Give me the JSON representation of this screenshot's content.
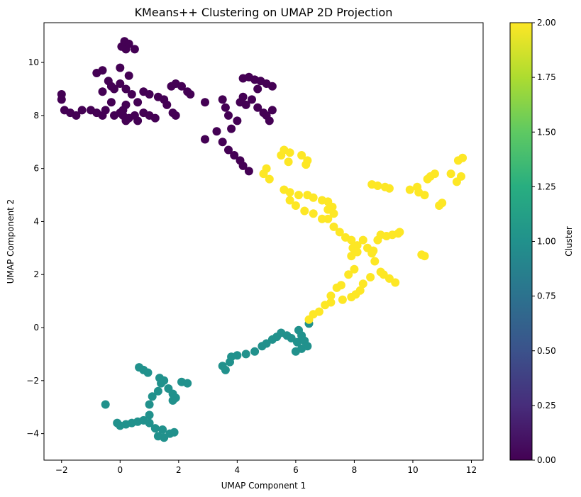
{
  "chart_data": {
    "type": "scatter",
    "title": "KMeans++ Clustering on UMAP 2D Projection",
    "xlabel": "UMAP Component 1",
    "ylabel": "UMAP Component 2",
    "xlim": [
      -2.6,
      12.4
    ],
    "ylim": [
      -5.0,
      11.5
    ],
    "xticks": [
      -2,
      0,
      2,
      4,
      6,
      8,
      10,
      12
    ],
    "yticks": [
      -4,
      -2,
      0,
      2,
      4,
      6,
      8,
      10
    ],
    "grid": false,
    "colormap": "viridis",
    "colorbar": {
      "label": "Cluster",
      "range": [
        0.0,
        2.0
      ],
      "ticks": [
        "0.00",
        "0.25",
        "0.50",
        "0.75",
        "1.00",
        "1.25",
        "1.50",
        "1.75",
        "2.00"
      ]
    },
    "series": [
      {
        "cluster": 0,
        "color": "#440154",
        "points": [
          [
            -2.0,
            8.8
          ],
          [
            -2.0,
            8.6
          ],
          [
            -1.9,
            8.2
          ],
          [
            -1.7,
            8.1
          ],
          [
            -1.5,
            8.0
          ],
          [
            -1.3,
            8.2
          ],
          [
            -1.0,
            8.2
          ],
          [
            -0.8,
            8.1
          ],
          [
            -0.6,
            8.0
          ],
          [
            -0.5,
            8.2
          ],
          [
            -0.3,
            8.5
          ],
          [
            -0.2,
            8.0
          ],
          [
            0.0,
            8.1
          ],
          [
            0.1,
            8.0
          ],
          [
            0.2,
            7.8
          ],
          [
            0.3,
            7.9
          ],
          [
            0.5,
            8.0
          ],
          [
            0.6,
            7.8
          ],
          [
            0.8,
            8.1
          ],
          [
            1.0,
            8.0
          ],
          [
            1.2,
            7.9
          ],
          [
            -0.6,
            8.9
          ],
          [
            -0.4,
            9.3
          ],
          [
            -0.2,
            9.0
          ],
          [
            0.0,
            9.2
          ],
          [
            0.2,
            9.0
          ],
          [
            0.4,
            8.8
          ],
          [
            0.6,
            8.5
          ],
          [
            0.2,
            8.4
          ],
          [
            0.1,
            8.2
          ],
          [
            0.2,
            10.5
          ],
          [
            0.05,
            10.6
          ],
          [
            0.15,
            10.8
          ],
          [
            0.3,
            10.7
          ],
          [
            0.5,
            10.5
          ],
          [
            -0.6,
            9.7
          ],
          [
            -0.8,
            9.6
          ],
          [
            0.3,
            9.5
          ],
          [
            0.0,
            9.8
          ],
          [
            -0.3,
            9.1
          ],
          [
            0.8,
            8.9
          ],
          [
            1.0,
            8.8
          ],
          [
            1.3,
            8.7
          ],
          [
            1.5,
            8.6
          ],
          [
            1.6,
            8.4
          ],
          [
            1.8,
            8.1
          ],
          [
            1.9,
            8.0
          ],
          [
            1.75,
            9.1
          ],
          [
            1.9,
            9.2
          ],
          [
            2.1,
            9.1
          ],
          [
            2.3,
            8.9
          ],
          [
            2.4,
            8.8
          ],
          [
            2.9,
            8.5
          ],
          [
            2.9,
            7.1
          ],
          [
            3.3,
            7.4
          ],
          [
            3.5,
            7.0
          ],
          [
            3.7,
            6.7
          ],
          [
            3.9,
            6.5
          ],
          [
            4.1,
            6.3
          ],
          [
            4.2,
            6.1
          ],
          [
            4.4,
            5.9
          ],
          [
            3.5,
            8.6
          ],
          [
            3.6,
            8.3
          ],
          [
            3.7,
            8.0
          ],
          [
            3.8,
            7.5
          ],
          [
            4.0,
            7.8
          ],
          [
            4.1,
            8.5
          ],
          [
            4.3,
            8.4
          ],
          [
            4.5,
            8.6
          ],
          [
            4.7,
            8.3
          ],
          [
            4.9,
            8.1
          ],
          [
            5.0,
            8.0
          ],
          [
            5.2,
            8.2
          ],
          [
            5.1,
            7.8
          ],
          [
            4.2,
            8.7
          ],
          [
            4.2,
            9.4
          ],
          [
            4.4,
            9.45
          ],
          [
            4.6,
            9.35
          ],
          [
            4.8,
            9.3
          ],
          [
            5.0,
            9.2
          ],
          [
            5.2,
            9.1
          ],
          [
            4.7,
            9.0
          ]
        ]
      },
      {
        "cluster": 1,
        "color": "#21918c",
        "points": [
          [
            -0.5,
            -2.9
          ],
          [
            -0.1,
            -3.6
          ],
          [
            0.0,
            -3.7
          ],
          [
            0.2,
            -3.65
          ],
          [
            0.4,
            -3.6
          ],
          [
            0.6,
            -3.55
          ],
          [
            0.8,
            -3.5
          ],
          [
            1.0,
            -3.6
          ],
          [
            1.2,
            -3.8
          ],
          [
            1.3,
            -4.1
          ],
          [
            1.5,
            -4.15
          ],
          [
            1.7,
            -4.0
          ],
          [
            1.85,
            -3.95
          ],
          [
            1.45,
            -3.85
          ],
          [
            1.0,
            -3.3
          ],
          [
            1.0,
            -2.9
          ],
          [
            1.1,
            -2.6
          ],
          [
            1.3,
            -2.4
          ],
          [
            1.4,
            -2.1
          ],
          [
            1.35,
            -1.9
          ],
          [
            1.5,
            -2.0
          ],
          [
            1.65,
            -2.3
          ],
          [
            1.8,
            -2.5
          ],
          [
            1.9,
            -2.65
          ],
          [
            1.8,
            -2.75
          ],
          [
            0.65,
            -1.5
          ],
          [
            0.8,
            -1.6
          ],
          [
            0.95,
            -1.7
          ],
          [
            2.1,
            -2.05
          ],
          [
            2.3,
            -2.1
          ],
          [
            3.5,
            -1.45
          ],
          [
            3.6,
            -1.6
          ],
          [
            3.75,
            -1.3
          ],
          [
            3.8,
            -1.1
          ],
          [
            4.0,
            -1.05
          ],
          [
            4.3,
            -1.0
          ],
          [
            4.6,
            -0.9
          ],
          [
            4.85,
            -0.7
          ],
          [
            5.0,
            -0.6
          ],
          [
            5.2,
            -0.45
          ],
          [
            5.35,
            -0.35
          ],
          [
            5.5,
            -0.2
          ],
          [
            5.7,
            -0.3
          ],
          [
            5.85,
            -0.4
          ],
          [
            6.05,
            -0.55
          ],
          [
            6.2,
            -0.3
          ],
          [
            6.3,
            -0.5
          ],
          [
            6.4,
            -0.7
          ],
          [
            6.2,
            -0.8
          ],
          [
            6.0,
            -0.9
          ],
          [
            6.1,
            -0.1
          ],
          [
            6.45,
            0.15
          ]
        ]
      },
      {
        "cluster": 2,
        "color": "#fde725",
        "points": [
          [
            4.9,
            5.8
          ],
          [
            5.0,
            6.0
          ],
          [
            5.1,
            5.6
          ],
          [
            5.5,
            6.5
          ],
          [
            5.6,
            6.7
          ],
          [
            5.8,
            6.6
          ],
          [
            5.75,
            6.25
          ],
          [
            6.2,
            6.5
          ],
          [
            6.4,
            6.3
          ],
          [
            6.35,
            6.15
          ],
          [
            5.6,
            5.2
          ],
          [
            5.8,
            5.1
          ],
          [
            6.1,
            5.0
          ],
          [
            6.4,
            5.0
          ],
          [
            6.6,
            4.9
          ],
          [
            6.9,
            4.8
          ],
          [
            7.1,
            4.75
          ],
          [
            5.8,
            4.8
          ],
          [
            6.0,
            4.6
          ],
          [
            6.3,
            4.4
          ],
          [
            6.6,
            4.3
          ],
          [
            6.9,
            4.1
          ],
          [
            7.1,
            4.1
          ],
          [
            7.3,
            3.8
          ],
          [
            7.5,
            3.6
          ],
          [
            7.7,
            3.4
          ],
          [
            7.9,
            3.3
          ],
          [
            7.1,
            4.45
          ],
          [
            7.25,
            4.55
          ],
          [
            7.3,
            4.3
          ],
          [
            7.95,
            3.0
          ],
          [
            7.9,
            2.7
          ],
          [
            8.1,
            3.1
          ],
          [
            8.1,
            2.85
          ],
          [
            8.3,
            3.3
          ],
          [
            8.45,
            3.0
          ],
          [
            8.65,
            2.9
          ],
          [
            8.8,
            3.3
          ],
          [
            8.9,
            3.5
          ],
          [
            9.1,
            3.45
          ],
          [
            9.3,
            3.5
          ],
          [
            9.55,
            3.6
          ],
          [
            8.6,
            5.4
          ],
          [
            8.8,
            5.35
          ],
          [
            9.05,
            5.3
          ],
          [
            9.2,
            5.25
          ],
          [
            9.9,
            5.2
          ],
          [
            10.15,
            5.3
          ],
          [
            10.4,
            5.0
          ],
          [
            10.2,
            5.1
          ],
          [
            10.5,
            5.6
          ],
          [
            10.6,
            5.7
          ],
          [
            10.75,
            5.8
          ],
          [
            10.9,
            4.6
          ],
          [
            11.0,
            4.7
          ],
          [
            11.3,
            5.8
          ],
          [
            11.55,
            6.3
          ],
          [
            11.7,
            6.4
          ],
          [
            11.65,
            5.7
          ],
          [
            11.5,
            5.5
          ],
          [
            10.4,
            2.7
          ],
          [
            10.3,
            2.75
          ],
          [
            8.7,
            2.5
          ],
          [
            8.9,
            2.1
          ],
          [
            8.55,
            1.9
          ],
          [
            8.3,
            1.65
          ],
          [
            8.2,
            1.4
          ],
          [
            8.05,
            1.25
          ],
          [
            7.9,
            1.15
          ],
          [
            7.6,
            1.05
          ],
          [
            7.2,
            0.95
          ],
          [
            7.4,
            1.5
          ],
          [
            7.2,
            1.2
          ],
          [
            7.0,
            0.85
          ],
          [
            6.8,
            0.6
          ],
          [
            6.6,
            0.5
          ],
          [
            6.45,
            0.3
          ],
          [
            7.55,
            1.6
          ],
          [
            7.8,
            2.0
          ],
          [
            8.0,
            2.2
          ],
          [
            9.0,
            2.0
          ],
          [
            9.2,
            1.85
          ],
          [
            9.4,
            1.7
          ],
          [
            8.6,
            2.8
          ],
          [
            9.5,
            3.55
          ]
        ]
      }
    ]
  }
}
